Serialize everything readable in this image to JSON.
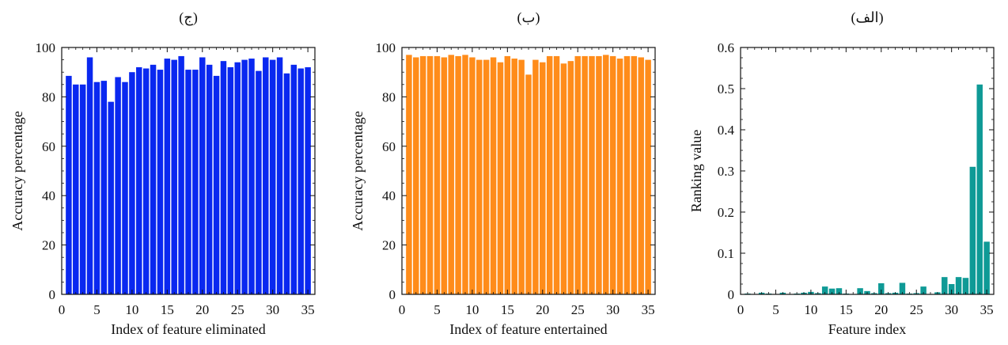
{
  "chart_data": [
    {
      "type": "bar",
      "title": "(ج)",
      "xlabel": "Index of feature eliminated",
      "ylabel": "Accuracy percentage",
      "xlim": [
        0,
        36
      ],
      "ylim": [
        0,
        100
      ],
      "xticks": [
        0,
        5,
        10,
        15,
        20,
        25,
        30,
        35
      ],
      "yticks": [
        0,
        20,
        40,
        60,
        80,
        100
      ],
      "color": "#0a28f0",
      "grid": false,
      "x": [
        1,
        2,
        3,
        4,
        5,
        6,
        7,
        8,
        9,
        10,
        11,
        12,
        13,
        14,
        15,
        16,
        17,
        18,
        19,
        20,
        21,
        22,
        23,
        24,
        25,
        26,
        27,
        28,
        29,
        30,
        31,
        32,
        33,
        34,
        35
      ],
      "values": [
        88.5,
        85,
        85,
        96,
        86,
        86.5,
        78,
        88,
        86,
        90,
        92,
        91.5,
        93,
        91,
        95.5,
        95,
        96.5,
        91,
        91,
        96,
        93,
        88.5,
        94.5,
        92,
        94,
        95,
        95.5,
        90.5,
        96,
        95,
        96,
        89.5,
        93,
        91.5,
        92
      ]
    },
    {
      "type": "bar",
      "title": "(ب)",
      "xlabel": "Index of feature entertained",
      "ylabel": "Accuracy percentage",
      "xlim": [
        0,
        36
      ],
      "ylim": [
        0,
        100
      ],
      "xticks": [
        0,
        5,
        10,
        15,
        20,
        25,
        30,
        35
      ],
      "yticks": [
        0,
        20,
        40,
        60,
        80,
        100
      ],
      "color": "#ff8c1a",
      "grid": false,
      "x": [
        1,
        2,
        3,
        4,
        5,
        6,
        7,
        8,
        9,
        10,
        11,
        12,
        13,
        14,
        15,
        16,
        17,
        18,
        19,
        20,
        21,
        22,
        23,
        24,
        25,
        26,
        27,
        28,
        29,
        30,
        31,
        32,
        33,
        34,
        35
      ],
      "values": [
        97,
        96,
        96.5,
        96.5,
        96.5,
        96,
        97,
        96.5,
        97,
        96,
        95,
        95,
        96,
        94,
        96.5,
        95.5,
        95,
        89,
        95,
        94,
        96.5,
        96.5,
        93.5,
        94.5,
        96.5,
        96.5,
        96.5,
        96.5,
        97,
        96.5,
        95.5,
        96.5,
        96.5,
        96,
        95
      ]
    },
    {
      "type": "bar",
      "title": "(الف)",
      "xlabel": "Feature index",
      "ylabel": "Ranking value",
      "xlim": [
        0,
        36
      ],
      "ylim": [
        0,
        0.6
      ],
      "xticks": [
        0,
        5,
        10,
        15,
        20,
        25,
        30,
        35
      ],
      "yticks": [
        0,
        0.1,
        0.2,
        0.3,
        0.4,
        0.5,
        0.6
      ],
      "ytick_labels": [
        "0",
        "0.1",
        "0.2",
        "0.3",
        "0.4",
        "0.5",
        "0.6"
      ],
      "color": "#0f9a96",
      "grid": false,
      "x": [
        1,
        2,
        3,
        4,
        5,
        6,
        7,
        8,
        9,
        10,
        11,
        12,
        13,
        14,
        15,
        16,
        17,
        18,
        19,
        20,
        21,
        22,
        23,
        24,
        25,
        26,
        27,
        28,
        29,
        30,
        31,
        32,
        33,
        34,
        35
      ],
      "values": [
        0.002,
        0.001,
        0.004,
        0.002,
        0.001,
        0.004,
        0.001,
        0.002,
        0.004,
        0.006,
        0.003,
        0.019,
        0.014,
        0.015,
        0.002,
        0.001,
        0.015,
        0.008,
        0.003,
        0.027,
        0.003,
        0.004,
        0.028,
        0.002,
        0.003,
        0.019,
        0.001,
        0.005,
        0.042,
        0.025,
        0.042,
        0.04,
        0.31,
        0.51,
        0.128
      ]
    }
  ]
}
